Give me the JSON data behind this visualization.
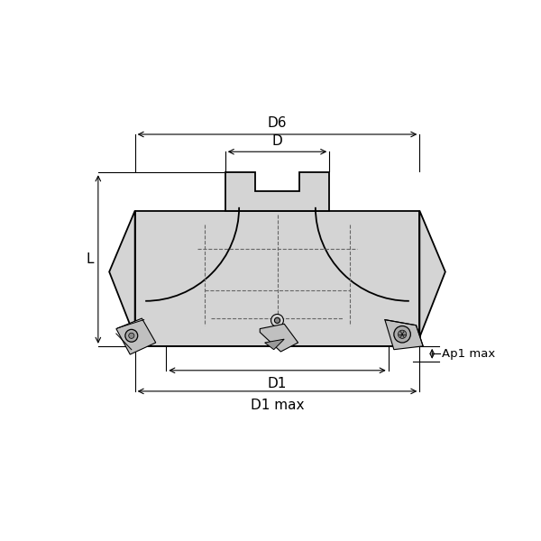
{
  "bg_color": "#ffffff",
  "line_color": "#000000",
  "fill_color": "#d4d4d4",
  "dashed_color": "#666666",
  "dim_color": "#000000",
  "dim_labels": {
    "D6": "D6",
    "D": "D",
    "D1": "D1",
    "D1max": "D1 max",
    "L": "L",
    "Ap1max": "Ap1 max"
  }
}
